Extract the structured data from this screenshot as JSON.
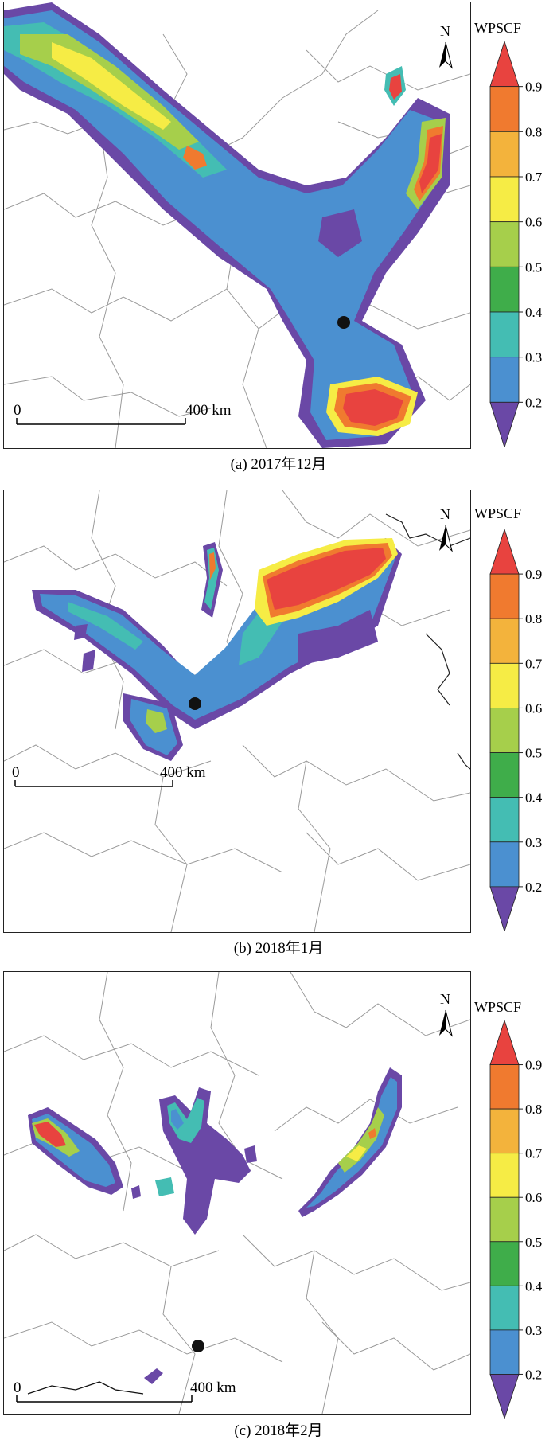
{
  "legend": {
    "title": "WPSCF",
    "ticks": [
      "0.9",
      "0.8",
      "0.7",
      "0.6",
      "0.5",
      "0.4",
      "0.3",
      "0.2"
    ],
    "colors": [
      "#e8433f",
      "#f07a2f",
      "#f3b33c",
      "#f6ec45",
      "#a6cf4b",
      "#3fad4a",
      "#44bdb3",
      "#4b90d0",
      "#6a48a6"
    ]
  },
  "north_label": "N",
  "scale": {
    "zero": "0",
    "distance": "400 km"
  },
  "panels": [
    {
      "caption": "(a)  2017年12月"
    },
    {
      "caption": "(b)  2018年1月"
    },
    {
      "caption": "(c)  2018年2月"
    }
  ]
}
